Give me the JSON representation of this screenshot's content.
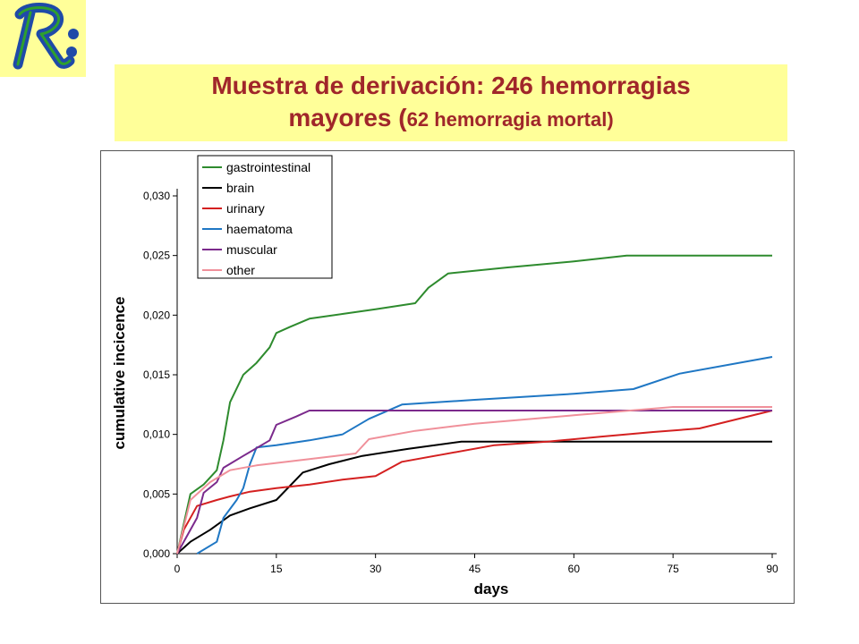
{
  "header": {
    "title_line1": "Muestra de derivación: 246 hemorragias",
    "title_line2_main": "mayores (",
    "title_line2_small": "62 hemorragia mortal)"
  },
  "logo": {
    "icon": "r-logo-icon",
    "text": "R",
    "bg": "#ffff99",
    "letter_color": "#1f4aa8"
  },
  "chart_data": {
    "type": "line",
    "title": "",
    "xlabel": "days",
    "ylabel": "cumulative incicence",
    "xlim": [
      0,
      90
    ],
    "ylim": [
      0,
      0.03
    ],
    "x_ticks": [
      0,
      15,
      30,
      45,
      60,
      75,
      90
    ],
    "x_tick_labels": [
      "0",
      "15",
      "30",
      "45",
      "60",
      "75",
      "90"
    ],
    "y_ticks": [
      0,
      0.005,
      0.01,
      0.015,
      0.02,
      0.025,
      0.03
    ],
    "y_tick_labels": [
      "0,000",
      "0,005",
      "0,010",
      "0,015",
      "0,020",
      "0,025",
      "0,030"
    ],
    "grid": false,
    "legend_position": "top-left",
    "series": [
      {
        "name": "gastrointestinal",
        "color": "#2e8b2e",
        "points": [
          [
            0,
            0
          ],
          [
            2,
            0.005
          ],
          [
            4,
            0.0058
          ],
          [
            6,
            0.007
          ],
          [
            7,
            0.0095
          ],
          [
            8,
            0.0127
          ],
          [
            10,
            0.015
          ],
          [
            12,
            0.016
          ],
          [
            14,
            0.0173
          ],
          [
            15,
            0.0185
          ],
          [
            17,
            0.019
          ],
          [
            20,
            0.0197
          ],
          [
            25,
            0.0201
          ],
          [
            30,
            0.0205
          ],
          [
            36,
            0.021
          ],
          [
            38,
            0.0223
          ],
          [
            41,
            0.0235
          ],
          [
            50,
            0.024
          ],
          [
            60,
            0.0245
          ],
          [
            68,
            0.025
          ],
          [
            90,
            0.025
          ]
        ]
      },
      {
        "name": "brain",
        "color": "#000000",
        "points": [
          [
            0,
            0
          ],
          [
            2,
            0.001
          ],
          [
            5,
            0.002
          ],
          [
            8,
            0.0032
          ],
          [
            11,
            0.0038
          ],
          [
            15,
            0.0045
          ],
          [
            19,
            0.0068
          ],
          [
            23,
            0.0075
          ],
          [
            28,
            0.0082
          ],
          [
            35,
            0.0088
          ],
          [
            43,
            0.0094
          ],
          [
            90,
            0.0094
          ]
        ]
      },
      {
        "name": "urinary",
        "color": "#d42020",
        "points": [
          [
            0,
            0
          ],
          [
            1,
            0.002
          ],
          [
            3,
            0.004
          ],
          [
            6,
            0.0045
          ],
          [
            8,
            0.0048
          ],
          [
            11,
            0.0052
          ],
          [
            15,
            0.0055
          ],
          [
            20,
            0.0058
          ],
          [
            25,
            0.0062
          ],
          [
            30,
            0.0065
          ],
          [
            34,
            0.0077
          ],
          [
            40,
            0.0083
          ],
          [
            48,
            0.0091
          ],
          [
            56,
            0.0094
          ],
          [
            64,
            0.0098
          ],
          [
            72,
            0.0102
          ],
          [
            79,
            0.0105
          ],
          [
            90,
            0.012
          ]
        ]
      },
      {
        "name": "haematoma",
        "color": "#1f77c4",
        "points": [
          [
            3,
            0
          ],
          [
            6,
            0.001
          ],
          [
            7,
            0.003
          ],
          [
            9,
            0.0045
          ],
          [
            10,
            0.0055
          ],
          [
            11,
            0.0075
          ],
          [
            12,
            0.0089
          ],
          [
            15,
            0.0091
          ],
          [
            20,
            0.0095
          ],
          [
            25,
            0.01
          ],
          [
            29,
            0.0113
          ],
          [
            34,
            0.0125
          ],
          [
            45,
            0.0129
          ],
          [
            60,
            0.0134
          ],
          [
            69,
            0.0138
          ],
          [
            76,
            0.0151
          ],
          [
            90,
            0.0165
          ]
        ]
      },
      {
        "name": "muscular",
        "color": "#7b2a8c",
        "points": [
          [
            0,
            0
          ],
          [
            3,
            0.003
          ],
          [
            4,
            0.0051
          ],
          [
            6,
            0.006
          ],
          [
            7,
            0.0072
          ],
          [
            10,
            0.0082
          ],
          [
            14,
            0.0095
          ],
          [
            15,
            0.0108
          ],
          [
            18,
            0.0115
          ],
          [
            20,
            0.012
          ],
          [
            90,
            0.012
          ]
        ]
      },
      {
        "name": "other",
        "color": "#f0909a",
        "points": [
          [
            0,
            0
          ],
          [
            2,
            0.0045
          ],
          [
            5,
            0.006
          ],
          [
            8,
            0.007
          ],
          [
            12,
            0.0074
          ],
          [
            18,
            0.0078
          ],
          [
            24,
            0.0082
          ],
          [
            27,
            0.0084
          ],
          [
            29,
            0.0096
          ],
          [
            36,
            0.0103
          ],
          [
            45,
            0.0109
          ],
          [
            60,
            0.0116
          ],
          [
            75,
            0.0123
          ],
          [
            90,
            0.0123
          ]
        ]
      }
    ]
  }
}
